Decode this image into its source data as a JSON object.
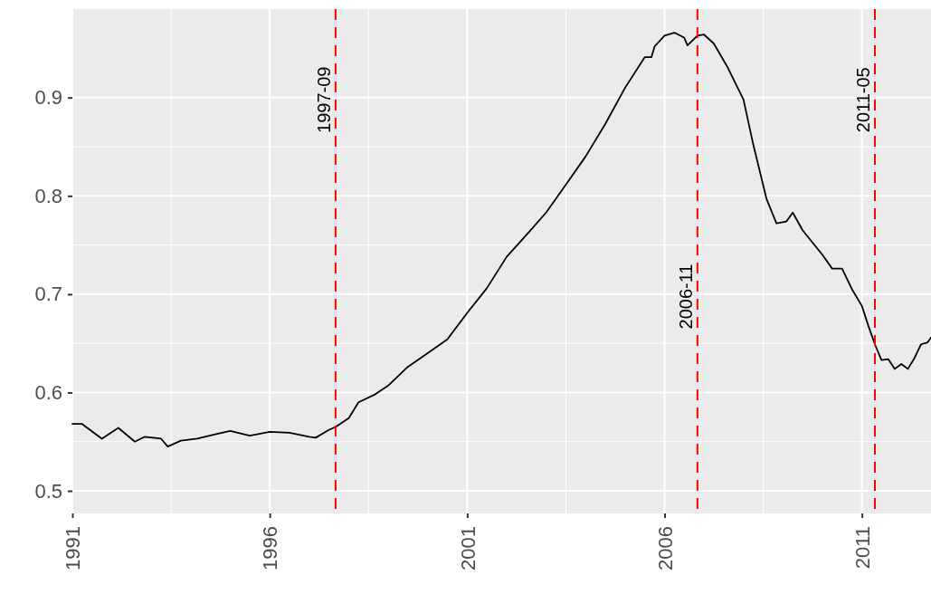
{
  "chart_data": {
    "type": "line",
    "x": [
      "1991-01",
      "1991-04",
      "1991-10",
      "1992-03",
      "1992-08",
      "1992-11",
      "1993-04",
      "1993-06",
      "1993-10",
      "1994-03",
      "1994-09",
      "1995-01",
      "1995-07",
      "1996-01",
      "1996-07",
      "1997-01",
      "1997-03",
      "1997-07",
      "1997-09",
      "1998-01",
      "1998-04",
      "1998-09",
      "1999-01",
      "1999-07",
      "2000-01",
      "2000-07",
      "2001-01",
      "2001-07",
      "2002-01",
      "2002-07",
      "2003-01",
      "2003-07",
      "2004-01",
      "2004-07",
      "2005-01",
      "2005-07",
      "2005-09",
      "2005-10",
      "2006-01",
      "2006-04",
      "2006-07",
      "2006-08",
      "2006-11",
      "2007-01",
      "2007-04",
      "2007-08",
      "2008-01",
      "2008-04",
      "2008-08",
      "2008-11",
      "2009-02",
      "2009-04",
      "2009-07",
      "2010-01",
      "2010-04",
      "2010-07",
      "2010-10",
      "2011-01",
      "2011-03",
      "2011-05",
      "2011-07",
      "2011-09",
      "2011-11",
      "2012-01",
      "2012-03",
      "2012-05",
      "2012-07",
      "2012-09",
      "2012-10"
    ],
    "series": [
      {
        "color": "#000000",
        "values": [
          0.568,
          0.568,
          0.553,
          0.564,
          0.55,
          0.555,
          0.553,
          0.545,
          0.551,
          0.553,
          0.558,
          0.561,
          0.556,
          0.56,
          0.559,
          0.555,
          0.554,
          0.562,
          0.565,
          0.574,
          0.59,
          0.598,
          0.607,
          0.626,
          0.64,
          0.654,
          0.681,
          0.706,
          0.738,
          0.76,
          0.783,
          0.811,
          0.84,
          0.873,
          0.91,
          0.941,
          0.941,
          0.952,
          0.963,
          0.966,
          0.961,
          0.953,
          0.963,
          0.964,
          0.955,
          0.932,
          0.898,
          0.852,
          0.797,
          0.772,
          0.774,
          0.783,
          0.765,
          0.74,
          0.726,
          0.726,
          0.705,
          0.688,
          0.668,
          0.649,
          0.633,
          0.634,
          0.624,
          0.629,
          0.624,
          0.635,
          0.649,
          0.651,
          0.656
        ]
      }
    ],
    "xlim": [
      "1991-01-01",
      "2012-10-01"
    ],
    "xticks": [
      {
        "value": "1991-01-01",
        "label": "1991"
      },
      {
        "value": "1996-01-01",
        "label": "1996"
      },
      {
        "value": "2001-01-01",
        "label": "2001"
      },
      {
        "value": "2006-01-01",
        "label": "2006"
      },
      {
        "value": "2011-01-01",
        "label": "2011"
      }
    ],
    "ylim": [
      0.477,
      0.99
    ],
    "yticks": [
      0.5,
      0.6,
      0.7,
      0.8,
      0.9
    ],
    "grid": true,
    "line_style": "solid",
    "ref_lines": [
      {
        "axis": "x",
        "value": "1997-09",
        "label": "1997-09",
        "color": "#ff0000",
        "line_style": "dashed"
      },
      {
        "axis": "x",
        "value": "2006-11",
        "label": "2006-11",
        "color": "#ff0000",
        "line_style": "dashed"
      },
      {
        "axis": "x",
        "value": "2011-05",
        "label": "2011-05",
        "color": "#ff0000",
        "line_style": "dashed"
      }
    ]
  }
}
